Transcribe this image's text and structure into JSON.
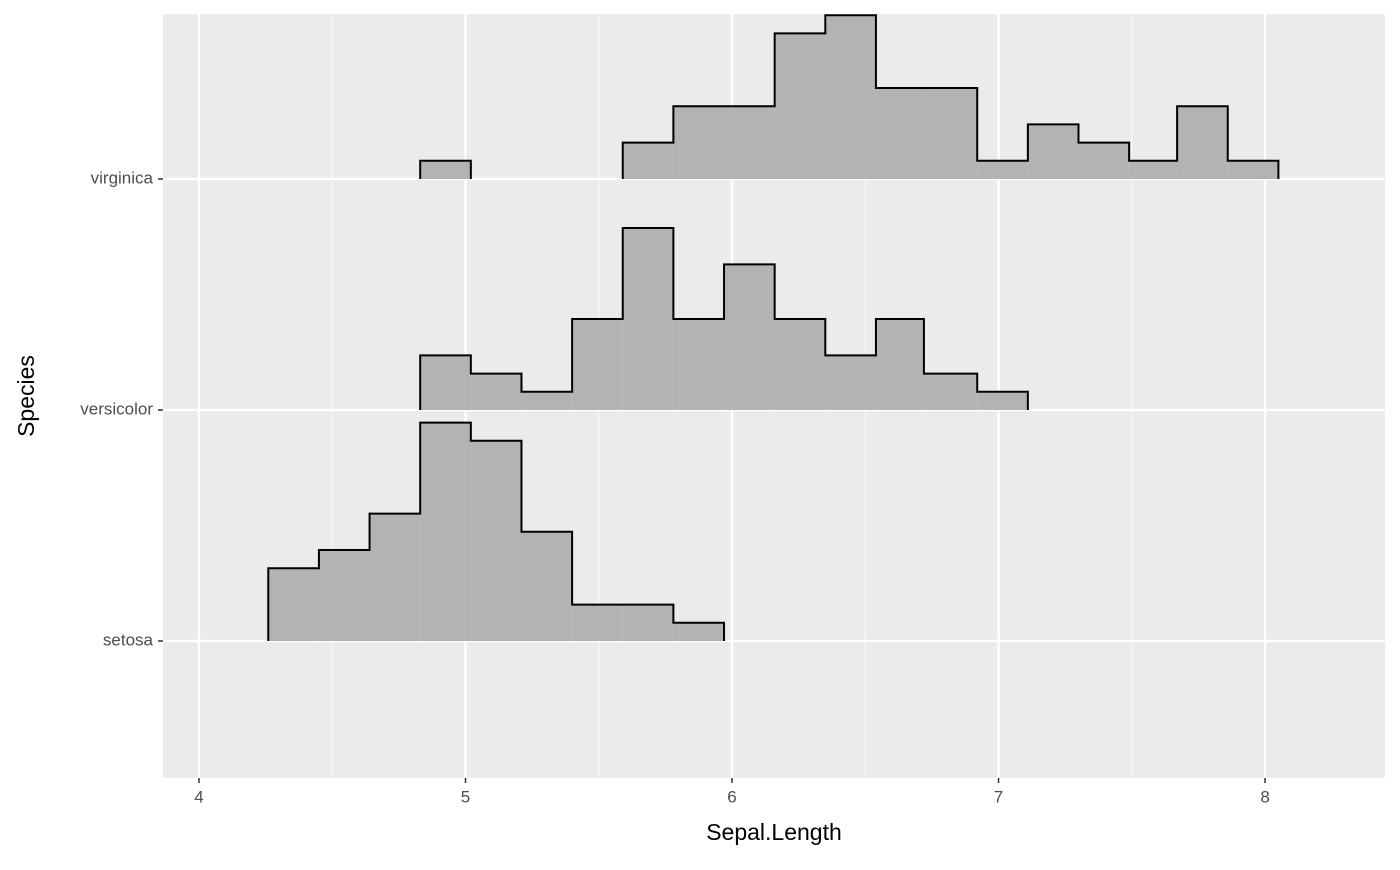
{
  "chart_data": {
    "type": "ridgeline-histogram",
    "x_label": "Sepal.Length",
    "y_label": "Species",
    "categories": [
      "setosa",
      "versicolor",
      "virginica"
    ],
    "bins": [
      4.26,
      4.45,
      4.64,
      4.83,
      5.02,
      5.21,
      5.4,
      5.59,
      5.78,
      5.97,
      6.16,
      6.35,
      6.54,
      6.72,
      6.92,
      7.11,
      7.3,
      7.49,
      7.67,
      7.86,
      8.05
    ],
    "series": [
      {
        "name": "setosa",
        "values": [
          4,
          5,
          7,
          12,
          11,
          6,
          2,
          2,
          1,
          0,
          0,
          0,
          0,
          0,
          0,
          0,
          0,
          0,
          0,
          0
        ]
      },
      {
        "name": "versicolor",
        "values": [
          0,
          0,
          0,
          3,
          2,
          1,
          5,
          10,
          5,
          8,
          5,
          3,
          5,
          2,
          1,
          0,
          0,
          0,
          0,
          0
        ]
      },
      {
        "name": "virginica",
        "values": [
          0,
          0,
          0,
          1,
          0,
          0,
          0,
          2,
          4,
          4,
          8,
          9,
          5,
          5,
          1,
          3,
          2,
          1,
          4,
          1
        ]
      }
    ],
    "color": "#b3b3b3",
    "xlim": [
      3.865,
      8.45
    ],
    "xticks": [
      4,
      5,
      6,
      7,
      8
    ],
    "xminor": [
      4.5,
      5.5,
      6.5,
      7.5
    ],
    "grid": true
  }
}
